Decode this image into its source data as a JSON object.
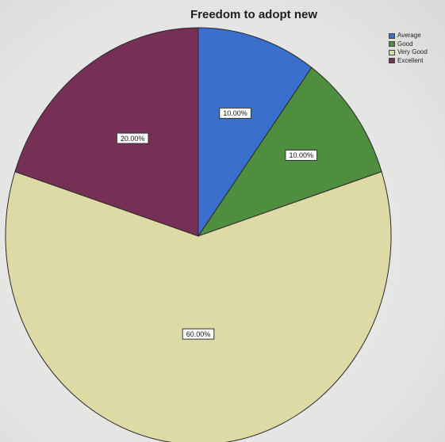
{
  "chart_data": {
    "type": "pie",
    "title": "Freedom to adopt new",
    "categories": [
      "Average",
      "Good",
      "Very Good",
      "Excellent"
    ],
    "values": [
      10.0,
      10.0,
      60.0,
      20.0
    ],
    "data_labels": [
      "10.00%",
      "10.00%",
      "60.00%",
      "20.00%"
    ],
    "colors": [
      "#3a6fce",
      "#4f8d3f",
      "#dedaa6",
      "#763055"
    ],
    "legend_placement": "top-right",
    "start_angle_deg": 0,
    "direction": "clockwise"
  }
}
